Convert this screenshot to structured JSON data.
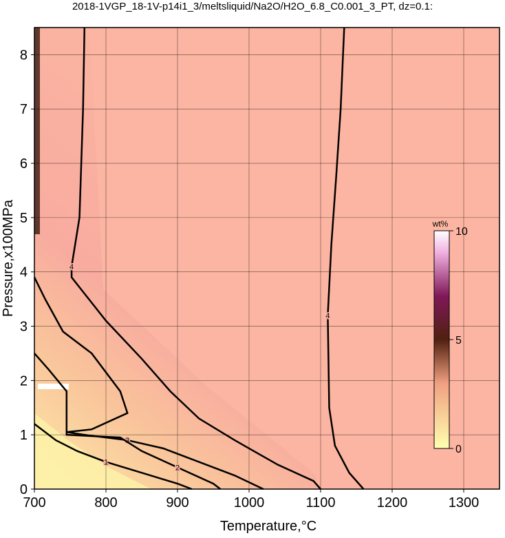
{
  "chart_data": {
    "type": "contour",
    "title": "2018-1VGP_18-1V-p14i1_3/meltsliquid/Na2O/H2O_6.8_C0.001_3_PT, dz=0.1:",
    "x_label": "Temperature,°C",
    "y_label": "Pressure,x100MPa",
    "xlim": [
      700,
      1350
    ],
    "ylim": [
      0,
      8.5
    ],
    "xticks": [
      700,
      800,
      900,
      1000,
      1100,
      1200,
      1300
    ],
    "yticks": [
      0,
      1,
      2,
      3,
      4,
      5,
      6,
      7,
      8
    ],
    "grid": true,
    "contours": [
      {
        "level": 4,
        "x": [
          1160,
          1140,
          1120,
          1112,
          1110,
          1115,
          1122,
          1128,
          1133
        ],
        "y": [
          0,
          0.3,
          0.8,
          1.5,
          3.2,
          4.5,
          5.8,
          7,
          8.5
        ]
      },
      {
        "level": 4,
        "x": [
          770,
          768,
          763,
          752,
          752,
          770,
          800,
          850,
          890,
          930,
          980,
          1040,
          1090,
          1100
        ],
        "y": [
          8.5,
          7,
          5,
          4.1,
          3.9,
          3.6,
          3.1,
          2.4,
          1.8,
          1.3,
          0.9,
          0.45,
          0.15,
          0
        ]
      },
      {
        "level": 3,
        "x": [
          700,
          715,
          740,
          780,
          820,
          830,
          780,
          745,
          770,
          830,
          880,
          930,
          980,
          1020
        ],
        "y": [
          3.9,
          3.5,
          2.9,
          2.5,
          1.8,
          1.4,
          1.1,
          1.05,
          1.0,
          0.9,
          0.75,
          0.5,
          0.25,
          0
        ]
      },
      {
        "level": 2,
        "x": [
          700,
          720,
          745,
          745,
          820,
          850,
          900,
          950,
          960
        ],
        "y": [
          2.5,
          2.2,
          1.8,
          1.0,
          0.95,
          0.7,
          0.4,
          0.1,
          0
        ]
      },
      {
        "level": 1,
        "x": [
          700,
          730,
          760,
          800,
          850,
          900,
          920
        ],
        "y": [
          1.2,
          0.9,
          0.7,
          0.5,
          0.3,
          0.1,
          0
        ]
      }
    ],
    "colorbar": {
      "label": "wt%",
      "lim": [
        0,
        10
      ],
      "ticks": [
        0,
        5,
        10
      ]
    }
  }
}
